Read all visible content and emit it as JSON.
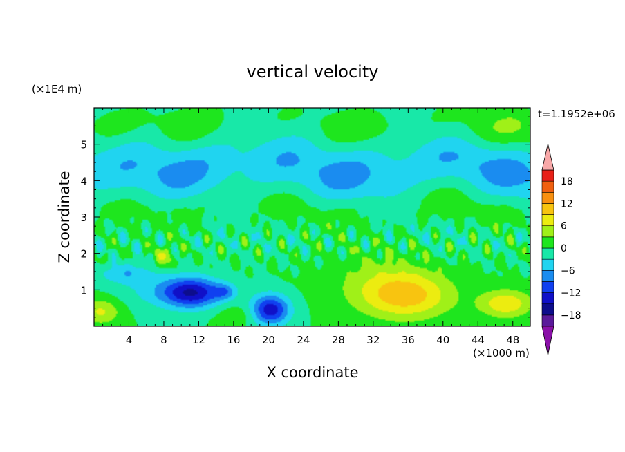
{
  "chart_data": {
    "type": "heatmap",
    "title": "vertical velocity",
    "xlabel": "X coordinate",
    "ylabel": "Z coordinate",
    "x_unit": "(×1000 m)",
    "y_unit": "(×1E4 m)",
    "time_label": "t=1.1952e+06",
    "xlim": [
      0,
      50
    ],
    "ylim": [
      0,
      6
    ],
    "x_ticks": [
      4,
      8,
      12,
      16,
      20,
      24,
      28,
      32,
      36,
      40,
      44,
      48
    ],
    "y_ticks": [
      1,
      2,
      3,
      4,
      5
    ],
    "x_tick_labels": [
      "4",
      "8",
      "12",
      "16",
      "20",
      "24",
      "28",
      "32",
      "36",
      "40",
      "44",
      "48"
    ],
    "y_tick_labels": [
      "1",
      "2",
      "3",
      "4",
      "5"
    ],
    "colorbar": {
      "levels": [
        -21,
        -18,
        -15,
        -12,
        -9,
        -6,
        -3,
        0,
        3,
        6,
        9,
        12,
        15,
        18,
        21
      ],
      "tick_values": [
        -18,
        -12,
        -6,
        0,
        6,
        12,
        18
      ],
      "tick_labels": [
        "−18",
        "−12",
        "−6",
        "0",
        "6",
        "12",
        "18"
      ],
      "colors": [
        "#5a1a9a",
        "#0d0d8c",
        "#1010c8",
        "#1040f0",
        "#1a8cf0",
        "#20d4f0",
        "#18e8a8",
        "#1ee61e",
        "#a0f018",
        "#ecec10",
        "#f8c410",
        "#f89010",
        "#f06010",
        "#e82018"
      ],
      "under_color": "#8a10a8",
      "over_color": "#f8a8a8"
    },
    "features": [
      {
        "x": 11,
        "z": 0.9,
        "value": -13
      },
      {
        "x": 20,
        "z": 0.45,
        "value": -12
      },
      {
        "x": 35.5,
        "z": 0.8,
        "value": 8
      },
      {
        "x": 47,
        "z": 0.6,
        "value": 7
      },
      {
        "x": 1,
        "z": 0.4,
        "value": 5
      },
      {
        "x": 8,
        "z": 1.9,
        "value": 5
      },
      {
        "x": 3,
        "z": 1.4,
        "value": -4
      }
    ]
  }
}
